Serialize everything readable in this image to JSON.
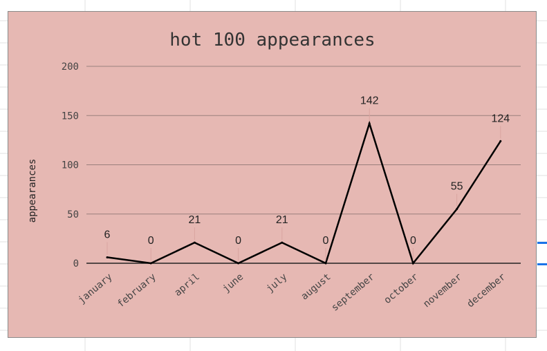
{
  "colors": {
    "chart_background": "#e6b8b3",
    "line": "#000000",
    "gridline": "#9a7f7c",
    "text": "#333333",
    "sheet_gridline": "#e2e2e2",
    "selection_accent": "#1a73e8"
  },
  "chart_data": {
    "type": "line",
    "title": "hot 100 appearances",
    "xlabel": "",
    "ylabel": "appearances",
    "categories": [
      "january",
      "february",
      "april",
      "june",
      "july",
      "august",
      "september",
      "october",
      "november",
      "december"
    ],
    "series": [
      {
        "values": [
          6,
          0,
          21,
          0,
          21,
          0,
          142,
          0,
          55,
          124
        ]
      }
    ],
    "data_labels": [
      "6",
      "0",
      "21",
      "0",
      "21",
      "0",
      "142",
      "0",
      "55",
      "124"
    ],
    "ylim": [
      0,
      200
    ],
    "yticks": [
      "0",
      "50",
      "100",
      "150",
      "200"
    ],
    "grid": true,
    "legend": "none"
  }
}
